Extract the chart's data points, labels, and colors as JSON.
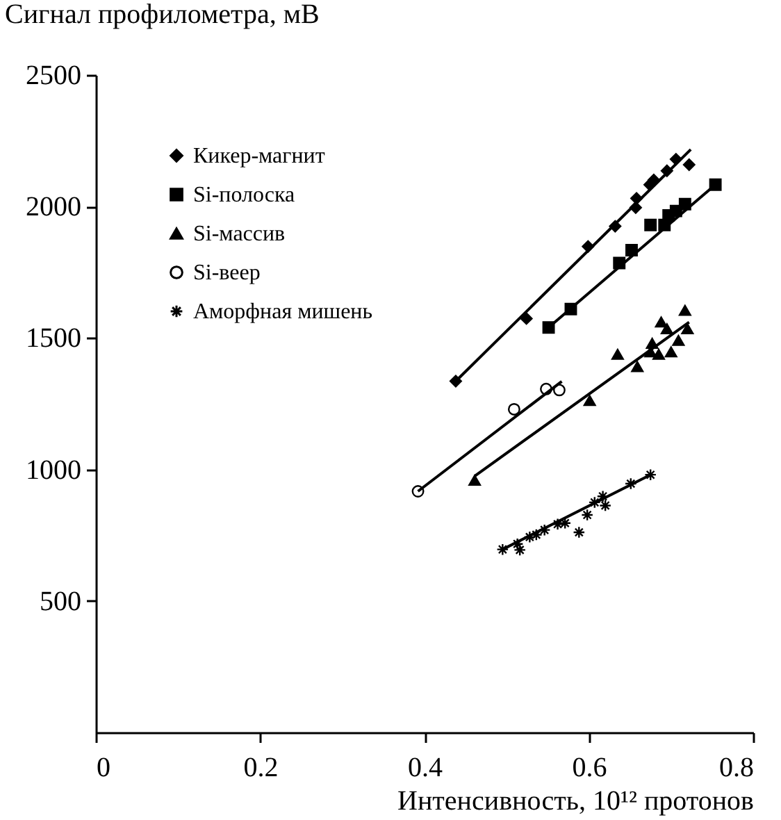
{
  "chart_data": {
    "type": "scatter",
    "xlabel": "Интенсивность, 10¹² протонов",
    "ylabel": "Сигнал профилометра, мВ",
    "xlim": [
      0,
      0.8
    ],
    "xticks": [
      0,
      0.2,
      0.4,
      0.6,
      0.8
    ],
    "ylim": [
      0,
      2500
    ],
    "yticks": [
      500,
      1000,
      1500,
      2000,
      2500
    ],
    "grid": false,
    "legend": "top left",
    "series": [
      {
        "name": "Кикер-магнит",
        "color": "#000000",
        "marker": "diamond",
        "x": [
          0.438,
          0.524,
          0.599,
          0.632,
          0.657,
          0.658,
          0.674,
          0.679,
          0.695,
          0.706,
          0.722
        ],
        "values": [
          1336,
          1574,
          1848,
          1925,
          1996,
          2031,
          2083,
          2101,
          2136,
          2180,
          2159
        ]
      },
      {
        "name": "Si-полоска",
        "color": "#000000",
        "marker": "square",
        "x": [
          0.551,
          0.578,
          0.637,
          0.652,
          0.675,
          0.692,
          0.697,
          0.706,
          0.717,
          0.754
        ],
        "values": [
          1540,
          1610,
          1785,
          1834,
          1930,
          1930,
          1966,
          1983,
          2009,
          2083
        ]
      },
      {
        "name": "Si-массив",
        "color": "#000000",
        "marker": "triangle",
        "x": [
          0.461,
          0.601,
          0.635,
          0.659,
          0.675,
          0.677,
          0.685,
          0.688,
          0.695,
          0.7,
          0.709,
          0.717,
          0.72
        ],
        "values": [
          959,
          1262,
          1438,
          1391,
          1447,
          1480,
          1438,
          1561,
          1535,
          1447,
          1491,
          1605,
          1535
        ]
      },
      {
        "name": "Si-веер",
        "color": "#000000",
        "marker": "circle",
        "x": [
          0.392,
          0.509,
          0.548,
          0.564
        ],
        "values": [
          917,
          1229,
          1306,
          1302
        ]
      },
      {
        "name": "Аморфная мишень",
        "color": "#000000",
        "marker": "cross",
        "x": [
          0.495,
          0.513,
          0.516,
          0.528,
          0.536,
          0.546,
          0.562,
          0.571,
          0.588,
          0.598,
          0.607,
          0.617,
          0.62,
          0.651,
          0.675
        ],
        "values": [
          696,
          717,
          694,
          743,
          752,
          770,
          792,
          796,
          761,
          827,
          875,
          898,
          863,
          946,
          980
        ]
      },
      {
        "type": "line",
        "color": "#000000",
        "x": [
          0.438,
          0.724
        ],
        "values": [
          1336,
          2217
        ]
      },
      {
        "type": "line",
        "color": "#000000",
        "x": [
          0.551,
          0.754
        ],
        "values": [
          1540,
          2083
        ]
      },
      {
        "type": "line",
        "color": "#000000",
        "x": [
          0.461,
          0.722
        ],
        "values": [
          975,
          1560
        ]
      },
      {
        "type": "line",
        "color": "#000000",
        "x": [
          0.392,
          0.567
        ],
        "values": [
          917,
          1335
        ]
      },
      {
        "type": "line",
        "color": "#000000",
        "x": [
          0.495,
          0.675
        ],
        "values": [
          696,
          980
        ]
      }
    ]
  }
}
